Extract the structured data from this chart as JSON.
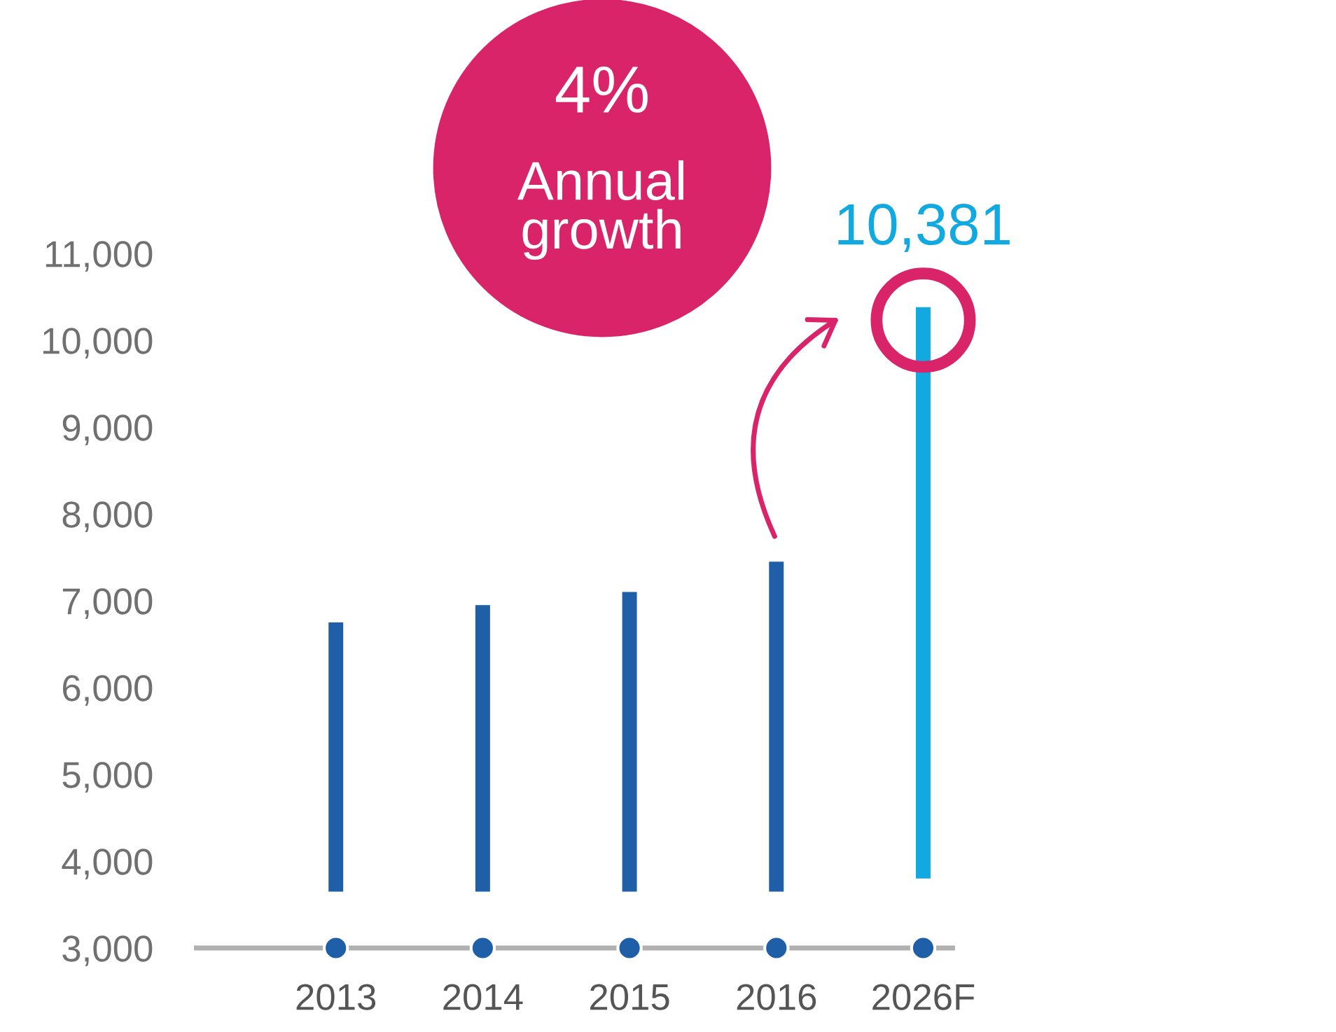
{
  "chart_data": {
    "type": "bar",
    "categories": [
      "2013",
      "2014",
      "2015",
      "2016",
      "2026F"
    ],
    "base": [
      3650,
      3650,
      3650,
      3650,
      3800
    ],
    "values": [
      3100,
      3300,
      3450,
      3800,
      6581
    ],
    "colors": [
      "#1f5fa8",
      "#1f5fa8",
      "#1f5fa8",
      "#1f5fa8",
      "#12a8e0"
    ],
    "value_labels": [
      null,
      null,
      null,
      null,
      "10,381"
    ],
    "ylim": [
      3000,
      11000
    ],
    "yticks": [
      {
        "value": 3000,
        "label": "3,000"
      },
      {
        "value": 4000,
        "label": "4,000"
      },
      {
        "value": 5000,
        "label": "5,000"
      },
      {
        "value": 6000,
        "label": "6,000"
      },
      {
        "value": 7000,
        "label": "7,000"
      },
      {
        "value": 8000,
        "label": "8,000"
      },
      {
        "value": 9000,
        "label": "9,000"
      },
      {
        "value": 10000,
        "label": "10,000"
      },
      {
        "value": 11000,
        "label": "11,000"
      }
    ],
    "grid": false,
    "legend": false,
    "annotations": [
      "4%",
      "Annual\ngrowth"
    ]
  }
}
